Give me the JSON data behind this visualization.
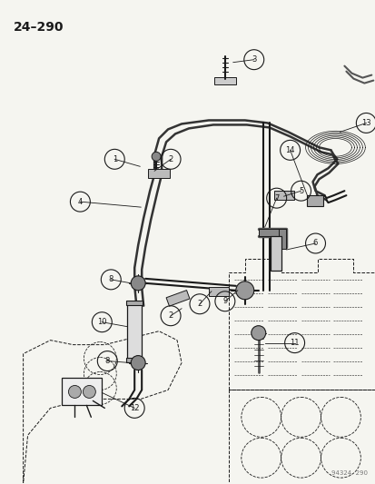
{
  "title": "24–290",
  "watermark": "94324  290",
  "bg_color": "#f5f5f0",
  "fg_color": "#1a1a1a",
  "fig_width": 4.14,
  "fig_height": 5.33,
  "dpi": 100
}
